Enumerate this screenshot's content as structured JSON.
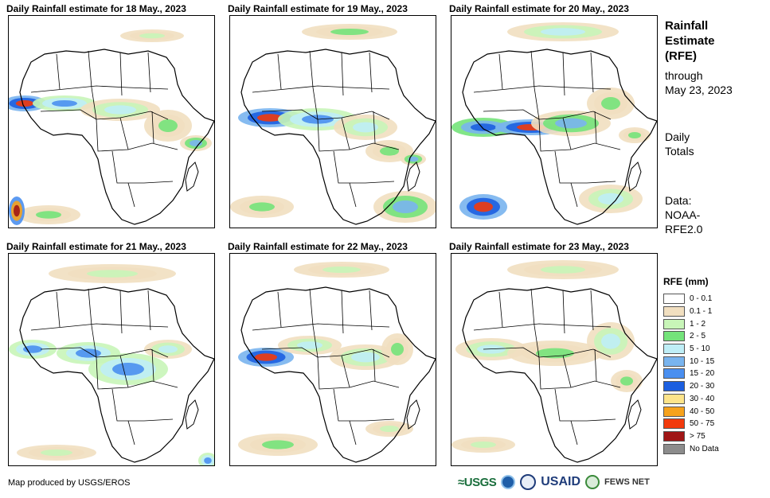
{
  "panels": [
    {
      "title": "Daily Rainfall estimate for 18 May., 2023"
    },
    {
      "title": "Daily Rainfall estimate for 19 May., 2023"
    },
    {
      "title": "Daily Rainfall estimate for 20 May., 2023"
    },
    {
      "title": "Daily Rainfall estimate for 21 May., 2023"
    },
    {
      "title": "Daily Rainfall estimate for 22 May., 2023"
    },
    {
      "title": "Daily Rainfall estimate for 23 May., 2023"
    }
  ],
  "side": {
    "title_line1": "Rainfall",
    "title_line2": "Estimate",
    "title_line3": "(RFE)",
    "through": "through",
    "through_date": "May 23, 2023",
    "daily1": "Daily",
    "daily2": "Totals",
    "data1": "Data:",
    "data2": "NOAA-",
    "data3": "RFE2.0"
  },
  "legend": {
    "title": "RFE (mm)",
    "items": [
      {
        "label": "0 - 0.1",
        "color": "#ffffff"
      },
      {
        "label": "0.1 - 1",
        "color": "#f1dfc0"
      },
      {
        "label": "1 - 2",
        "color": "#c8f5b8"
      },
      {
        "label": "2 - 5",
        "color": "#74e37a"
      },
      {
        "label": "5 - 10",
        "color": "#bfeef6"
      },
      {
        "label": "10 - 15",
        "color": "#79b4ee"
      },
      {
        "label": "15 - 20",
        "color": "#4a8ff0"
      },
      {
        "label": "20 - 30",
        "color": "#1c5fe0"
      },
      {
        "label": "30 - 40",
        "color": "#fde48a"
      },
      {
        "label": "40 - 50",
        "color": "#f6a21c"
      },
      {
        "label": "50 - 75",
        "color": "#f23a0c"
      },
      {
        "label": "> 75",
        "color": "#a01616"
      },
      {
        "label": "No Data",
        "color": "#8c8c8c"
      }
    ]
  },
  "footer": {
    "credit": "Map produced by USGS/EROS",
    "logo_usgs": "≈USGS",
    "logo_usaid": "USAID",
    "logo_fews": "FEWS NET"
  }
}
